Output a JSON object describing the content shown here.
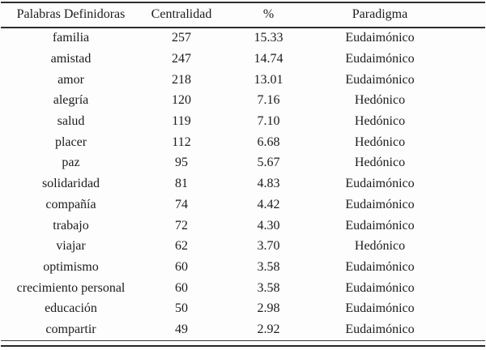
{
  "table": {
    "columns": [
      "Palabras Definidoras",
      "Centralidad",
      "%",
      "Paradigma"
    ],
    "rows": [
      {
        "palabra": "familia",
        "centralidad": "257",
        "porcentaje": "15.33",
        "paradigma": "Eudaimónico"
      },
      {
        "palabra": "amistad",
        "centralidad": "247",
        "porcentaje": "14.74",
        "paradigma": "Eudaimónico"
      },
      {
        "palabra": "amor",
        "centralidad": "218",
        "porcentaje": "13.01",
        "paradigma": "Eudaimónico"
      },
      {
        "palabra": "alegría",
        "centralidad": "120",
        "porcentaje": "7.16",
        "paradigma": "Hedónico"
      },
      {
        "palabra": "salud",
        "centralidad": "119",
        "porcentaje": "7.10",
        "paradigma": "Hedónico"
      },
      {
        "palabra": "placer",
        "centralidad": "112",
        "porcentaje": "6.68",
        "paradigma": "Hedónico"
      },
      {
        "palabra": "paz",
        "centralidad": "95",
        "porcentaje": "5.67",
        "paradigma": "Hedónico"
      },
      {
        "palabra": "solidaridad",
        "centralidad": "81",
        "porcentaje": "4.83",
        "paradigma": "Eudaimónico"
      },
      {
        "palabra": "compañía",
        "centralidad": "74",
        "porcentaje": "4.42",
        "paradigma": "Eudaimónico"
      },
      {
        "palabra": "trabajo",
        "centralidad": "72",
        "porcentaje": "4.30",
        "paradigma": "Eudaimónico"
      },
      {
        "palabra": "viajar",
        "centralidad": "62",
        "porcentaje": "3.70",
        "paradigma": "Hedónico"
      },
      {
        "palabra": "optimismo",
        "centralidad": "60",
        "porcentaje": "3.58",
        "paradigma": "Eudaimónico"
      },
      {
        "palabra": "crecimiento personal",
        "centralidad": "60",
        "porcentaje": "3.58",
        "paradigma": "Eudaimónico"
      },
      {
        "palabra": "educación",
        "centralidad": "50",
        "porcentaje": "2.98",
        "paradigma": "Eudaimónico"
      },
      {
        "palabra": "compartir",
        "centralidad": "49",
        "porcentaje": "2.92",
        "paradigma": "Eudaimónico"
      }
    ]
  },
  "chart_data": {
    "type": "table",
    "title": "",
    "columns": [
      "Palabras Definidoras",
      "Centralidad",
      "%",
      "Paradigma"
    ],
    "categories": [
      "familia",
      "amistad",
      "amor",
      "alegría",
      "salud",
      "placer",
      "paz",
      "solidaridad",
      "compañía",
      "trabajo",
      "viajar",
      "optimismo",
      "crecimiento personal",
      "educación",
      "compartir"
    ],
    "series": [
      {
        "name": "Centralidad",
        "values": [
          257,
          247,
          218,
          120,
          119,
          112,
          95,
          81,
          74,
          72,
          62,
          60,
          60,
          50,
          49
        ]
      },
      {
        "name": "%",
        "values": [
          15.33,
          14.74,
          13.01,
          7.16,
          7.1,
          6.68,
          5.67,
          4.83,
          4.42,
          4.3,
          3.7,
          3.58,
          3.58,
          2.98,
          2.92
        ]
      },
      {
        "name": "Paradigma",
        "values": [
          "Eudaimónico",
          "Eudaimónico",
          "Eudaimónico",
          "Hedónico",
          "Hedónico",
          "Hedónico",
          "Hedónico",
          "Eudaimónico",
          "Eudaimónico",
          "Eudaimónico",
          "Hedónico",
          "Eudaimónico",
          "Eudaimónico",
          "Eudaimónico",
          "Eudaimónico"
        ]
      }
    ]
  }
}
